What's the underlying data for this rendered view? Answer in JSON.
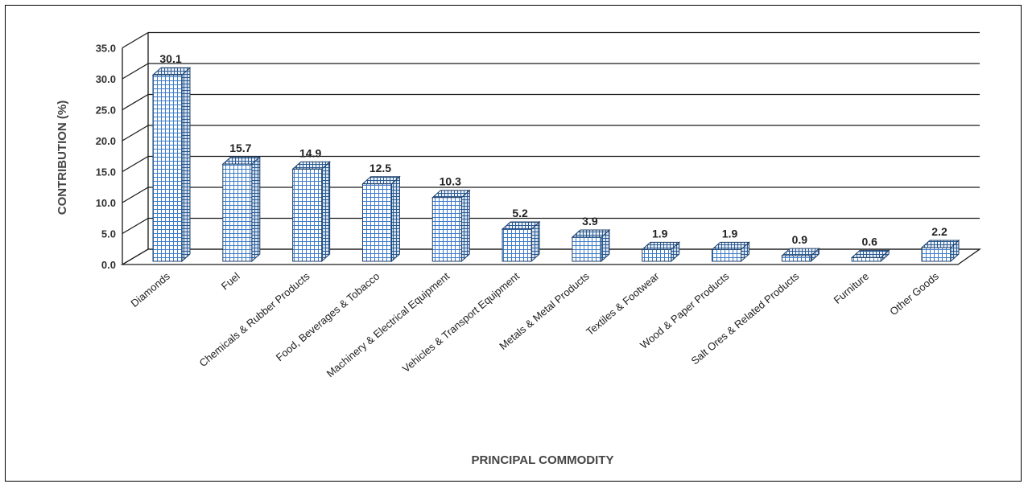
{
  "chart_data": {
    "type": "bar",
    "xlabel": "PRINCIPAL COMMODITY",
    "ylabel": "CONTRIBUTION (%)",
    "ylim": [
      0,
      35
    ],
    "yticks": [
      "0.0",
      "5.0",
      "10.0",
      "15.0",
      "20.0",
      "25.0",
      "30.0",
      "35.0"
    ],
    "grid": true,
    "legend": "none",
    "bar_color": "#5b9bd5",
    "categories": [
      "Diamonds",
      "Fuel",
      "Chemicals & Rubber Products",
      "Food, Beverages & Tobacco",
      "Machinery & Electrical Equipment",
      "Vehicles & Transport Equipment",
      "Metals & Metal Products",
      "Textiles & Footwear",
      "Wood & Paper Products",
      "Salt Ores & Related Products",
      "Furniture",
      "Other Goods"
    ],
    "values": [
      30.1,
      15.7,
      14.9,
      12.5,
      10.3,
      5.2,
      3.9,
      1.9,
      1.9,
      0.9,
      0.6,
      2.2
    ],
    "value_labels": [
      "30.1",
      "15.7",
      "14.9",
      "12.5",
      "10.3",
      "5.2",
      "3.9",
      "1.9",
      "1.9",
      "0.9",
      "0.6",
      "2.2"
    ]
  }
}
